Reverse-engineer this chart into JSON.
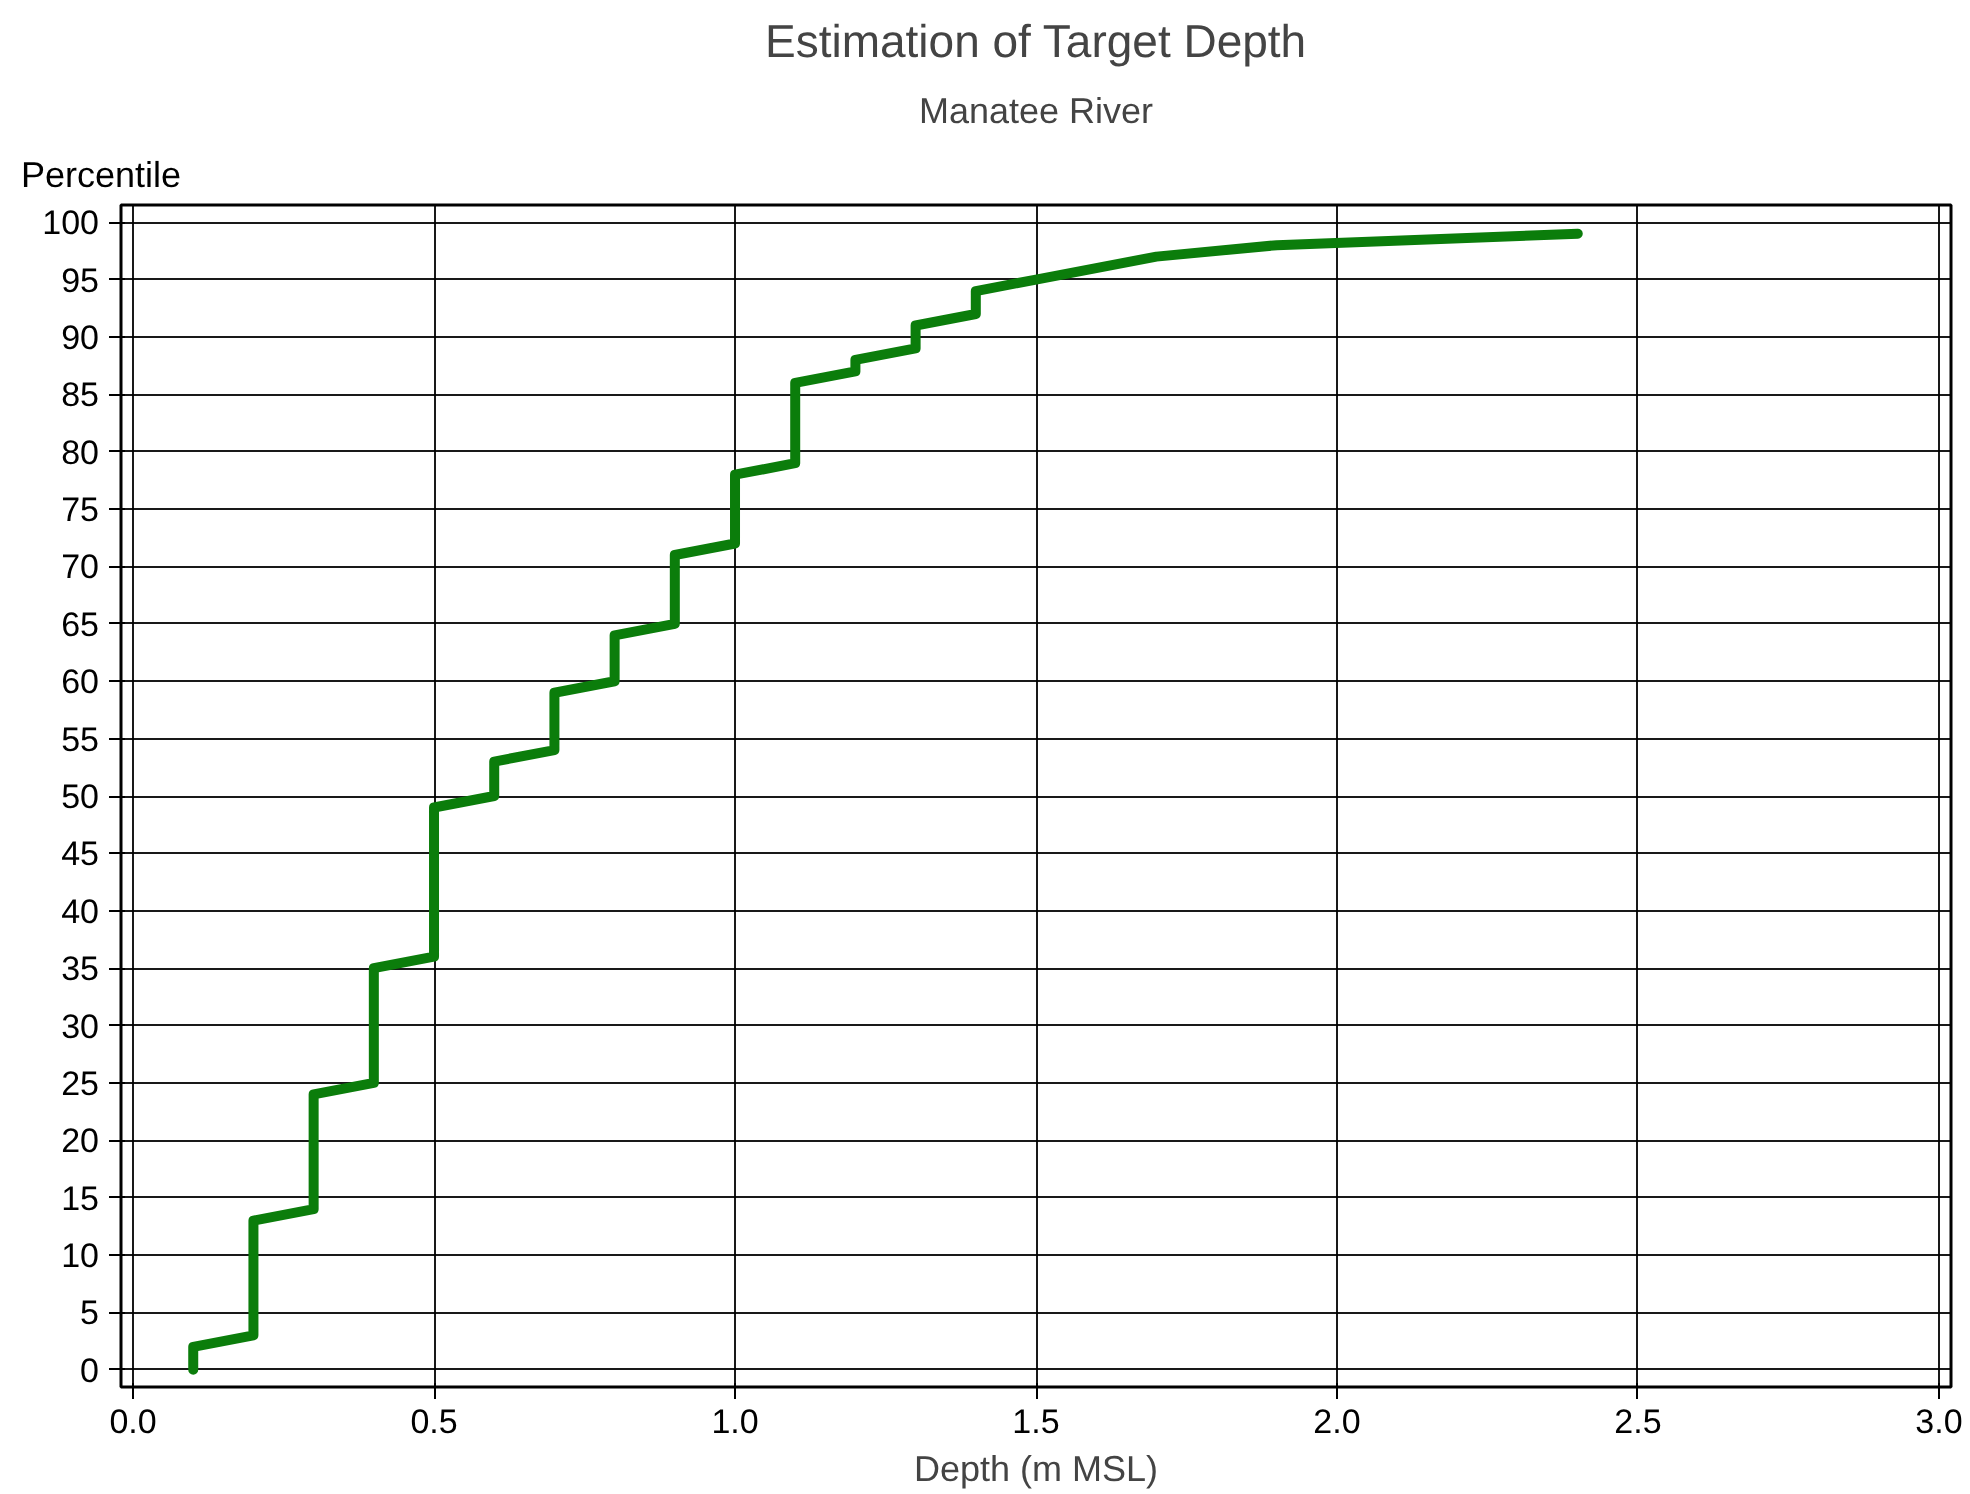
{
  "chart_data": {
    "type": "line",
    "title": "Estimation of Target Depth",
    "subtitle": "Manatee River",
    "xlabel": "Depth (m MSL)",
    "ylabel": "Percentile",
    "x": [
      0.1,
      0.1,
      0.2,
      0.2,
      0.3,
      0.3,
      0.4,
      0.4,
      0.5,
      0.5,
      0.6,
      0.6,
      0.7,
      0.7,
      0.8,
      0.8,
      0.9,
      0.9,
      1.0,
      1.0,
      1.1,
      1.1,
      1.2,
      1.2,
      1.3,
      1.3,
      1.4,
      1.4,
      1.5,
      1.7,
      1.9,
      2.4
    ],
    "series": [
      {
        "color": "#0b7d0b",
        "values": [
          0,
          2,
          3,
          13,
          14,
          24,
          25,
          35,
          36,
          49,
          50,
          53,
          54,
          59,
          60,
          64,
          65,
          71,
          72,
          78,
          79,
          86,
          87,
          88,
          89,
          91,
          92,
          94,
          95,
          97,
          98,
          99
        ]
      }
    ],
    "xlim": [
      -0.02,
      3.02
    ],
    "ylim": [
      -1.5,
      101.5
    ],
    "xticks": [
      {
        "value": 0,
        "label": "0.0"
      },
      0.5,
      {
        "value": 1,
        "label": "1.0"
      },
      1.5,
      {
        "value": 2,
        "label": "2.0"
      },
      2.5,
      {
        "value": 3,
        "label": "3.0"
      }
    ],
    "yticks": [
      0,
      5,
      10,
      15,
      20,
      25,
      30,
      35,
      40,
      45,
      50,
      55,
      60,
      65,
      70,
      75,
      80,
      85,
      90,
      95,
      100
    ],
    "grid": true,
    "marker": "none",
    "line_style": "solid"
  }
}
